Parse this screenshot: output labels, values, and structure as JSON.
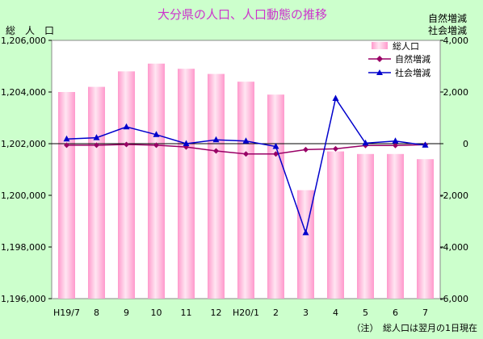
{
  "chart_data": {
    "type": "bar",
    "title": "大分県の人口、人口動態の推移",
    "ylabel_left": "総　人　口",
    "ylabel_right": [
      "自然増減",
      "社会増減"
    ],
    "note": "（注）　総人口は翌月の1日現在",
    "categories": [
      "H19/7",
      "8",
      "9",
      "10",
      "11",
      "12",
      "H20/1",
      "2",
      "3",
      "4",
      "5",
      "6",
      "7"
    ],
    "ylim_left": [
      1196000,
      1206000
    ],
    "yticks_left": [
      "1,196,000",
      "1,198,000",
      "1,200,000",
      "1,202,000",
      "1,204,000",
      "1,206,000"
    ],
    "ylim_right": [
      -6000,
      4000
    ],
    "yticks_right": [
      "-6,000",
      "-4,000",
      "-2,000",
      "0",
      "2,000",
      "4,000"
    ],
    "legend_position": "top-right",
    "series": [
      {
        "name": "総人口",
        "kind": "bar",
        "axis": "left",
        "color": "#ffaad2",
        "values": [
          1204000,
          1204200,
          1204800,
          1205100,
          1204900,
          1204700,
          1204400,
          1203900,
          1200200,
          1201700,
          1201600,
          1201600,
          1201400
        ]
      },
      {
        "name": "自然増減",
        "kind": "line",
        "axis": "right",
        "color": "#990066",
        "marker": "diamond",
        "values": [
          -60,
          -60,
          -30,
          -60,
          -130,
          -280,
          -400,
          -400,
          -230,
          -200,
          -70,
          -70,
          -40
        ]
      },
      {
        "name": "社会増減",
        "kind": "line",
        "axis": "right",
        "color": "#0000cc",
        "marker": "triangle",
        "values": [
          180,
          230,
          650,
          350,
          0,
          150,
          100,
          -110,
          -3450,
          1750,
          20,
          100,
          -60
        ]
      }
    ]
  }
}
